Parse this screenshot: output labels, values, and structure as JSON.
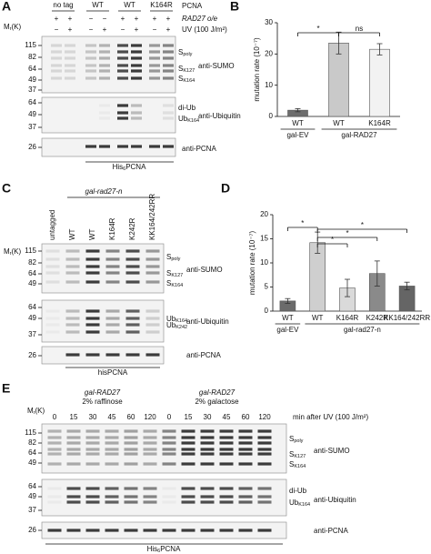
{
  "mr": {
    "main": "M",
    "sub": "r",
    "rest": "(K)"
  },
  "panel_a": {
    "letter": "A",
    "groups": [
      "no tag",
      "WT",
      "WT",
      "K164R"
    ],
    "row_labels": [
      "PCNA",
      "RAD27 o/e",
      "UV (100 J/m²)"
    ],
    "rad27_oe": [
      "+",
      "+",
      "−",
      "−",
      "+",
      "+",
      "+",
      "+"
    ],
    "uv": [
      "−",
      "+",
      "−",
      "+",
      "−",
      "+",
      "−",
      "+"
    ],
    "blots": [
      {
        "markers": [
          115,
          82,
          64,
          49,
          37
        ],
        "bands": [
          {
            "main": "S",
            "sub": "poly"
          },
          {
            "main": "S",
            "sub": "K127"
          },
          {
            "main": "S",
            "sub": "K164"
          }
        ],
        "antibody": "anti-SUMO"
      },
      {
        "markers": [
          64,
          49,
          37
        ],
        "bands": [
          {
            "main": "di-Ub"
          },
          {
            "main": "Ub",
            "sub": "K164"
          }
        ],
        "antibody": "anti-Ubiquitin"
      },
      {
        "markers": [
          26
        ],
        "bands": [],
        "antibody": "anti-PCNA"
      }
    ],
    "footer": {
      "main": "His",
      "sub": "6",
      "rest": "PCNA"
    }
  },
  "chart_data": [
    {
      "type": "bar",
      "letter": "B",
      "ylabel": "mutation rate (10⁻⁷)",
      "categories": [
        "WT",
        "WT",
        "K164R"
      ],
      "groups": [
        "gal-EV",
        "gal-RAD27"
      ],
      "values": [
        2,
        23.5,
        21.5
      ],
      "errors": [
        0.5,
        3.5,
        1.8
      ],
      "colors": [
        "#6d6d6d",
        "#c9c9c9",
        "#f2f2f2"
      ],
      "ylim": [
        0,
        30
      ],
      "yticks": [
        0,
        10,
        20,
        30
      ],
      "significance": [
        "*",
        "ns"
      ]
    },
    {
      "type": "bar",
      "letter": "D",
      "ylabel": "mutation rate (10⁻⁷)",
      "categories": [
        "WT",
        "WT",
        "K164R",
        "K242R",
        "KK164/242RR"
      ],
      "groups": [
        "gal-EV",
        "gal-rad27-n"
      ],
      "values": [
        2.1,
        14.2,
        4.8,
        7.8,
        5.2
      ],
      "errors": [
        0.5,
        2.2,
        1.8,
        2.6,
        0.8
      ],
      "colors": [
        "#6b6b6b",
        "#cfcfcf",
        "#dadada",
        "#8a8a8a",
        "#656565"
      ],
      "ylim": [
        0,
        20
      ],
      "yticks": [
        0,
        5,
        10,
        15,
        20
      ],
      "significance": [
        "*",
        "*",
        "*",
        "*"
      ]
    }
  ],
  "panel_c": {
    "letter": "C",
    "construct": "gal-rad27-n",
    "lanes": [
      "untagged",
      "WT",
      "WT",
      "K164R",
      "K242R",
      "KK164/242RR"
    ],
    "blots": [
      {
        "markers": [
          115,
          82,
          64,
          49
        ],
        "bands": [
          {
            "main": "S",
            "sub": "poly"
          },
          {
            "main": "S",
            "sub": "K127"
          },
          {
            "main": "S",
            "sub": "K164"
          }
        ],
        "antibody": "anti-SUMO"
      },
      {
        "markers": [
          64,
          49,
          37
        ],
        "bands": [
          {
            "main": "Ub",
            "sub": "K164"
          },
          {
            "main": "Ub",
            "sub": "K242"
          }
        ],
        "antibody": "anti-Ubiquitin"
      },
      {
        "markers": [
          26
        ],
        "bands": [],
        "antibody": "anti-PCNA"
      }
    ],
    "footer": {
      "main": "hisPCNA"
    }
  },
  "panel_e": {
    "letter": "E",
    "conditions": [
      [
        "gal-RAD27",
        "2% raffinose"
      ],
      [
        "gal-RAD27",
        "2% galactose"
      ]
    ],
    "times": [
      0,
      15,
      30,
      45,
      60,
      120,
      0,
      15,
      30,
      45,
      60,
      120
    ],
    "time_label": "min after UV (100 J/m²)",
    "blots": [
      {
        "markers": [
          115,
          82,
          64,
          49
        ],
        "bands": [
          {
            "main": "S",
            "sub": "poly"
          },
          {
            "main": "S",
            "sub": "K127"
          },
          {
            "main": "S",
            "sub": "K164"
          }
        ],
        "antibody": "anti-SUMO"
      },
      {
        "markers": [
          64,
          49,
          37
        ],
        "bands": [
          {
            "main": "di-Ub"
          },
          {
            "main": "Ub",
            "sub": "K164"
          }
        ],
        "antibody": "anti-Ubiquitin"
      },
      {
        "markers": [
          26
        ],
        "bands": [],
        "antibody": "anti-PCNA"
      }
    ],
    "footer": {
      "main": "His",
      "sub": "6",
      "rest": "PCNA"
    }
  }
}
